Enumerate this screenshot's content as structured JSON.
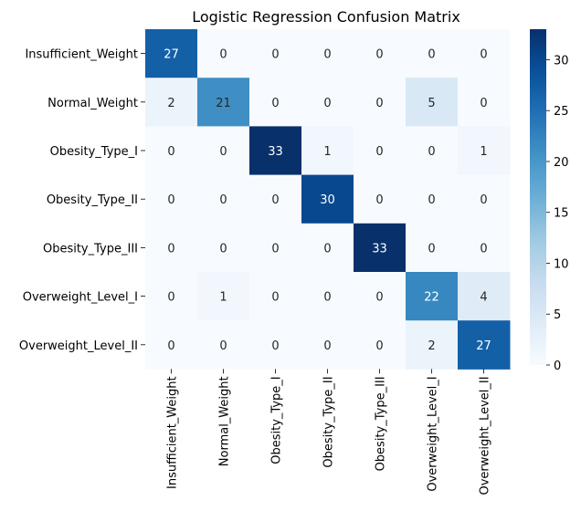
{
  "chart_data": {
    "type": "heatmap",
    "title": "Logistic Regression Confusion Matrix",
    "xlabel": "",
    "ylabel": "",
    "row_labels": [
      "Insufficient_Weight",
      "Normal_Weight",
      "Obesity_Type_I",
      "Obesity_Type_II",
      "Obesity_Type_III",
      "Overweight_Level_I",
      "Overweight_Level_II"
    ],
    "col_labels": [
      "Insufficient_Weight",
      "Normal_Weight",
      "Obesity_Type_I",
      "Obesity_Type_II",
      "Obesity_Type_III",
      "Overweight_Level_I",
      "Overweight_Level_II"
    ],
    "values": [
      [
        27,
        0,
        0,
        0,
        0,
        0,
        0
      ],
      [
        2,
        21,
        0,
        0,
        0,
        5,
        0
      ],
      [
        0,
        0,
        33,
        1,
        0,
        0,
        1
      ],
      [
        0,
        0,
        0,
        30,
        0,
        0,
        0
      ],
      [
        0,
        0,
        0,
        0,
        33,
        0,
        0
      ],
      [
        0,
        1,
        0,
        0,
        0,
        22,
        4
      ],
      [
        0,
        0,
        0,
        0,
        0,
        2,
        27
      ]
    ],
    "colormap": "Blues",
    "vmin": 0,
    "vmax": 33,
    "colorbar_ticks": [
      0,
      5,
      10,
      15,
      20,
      25,
      30
    ]
  }
}
